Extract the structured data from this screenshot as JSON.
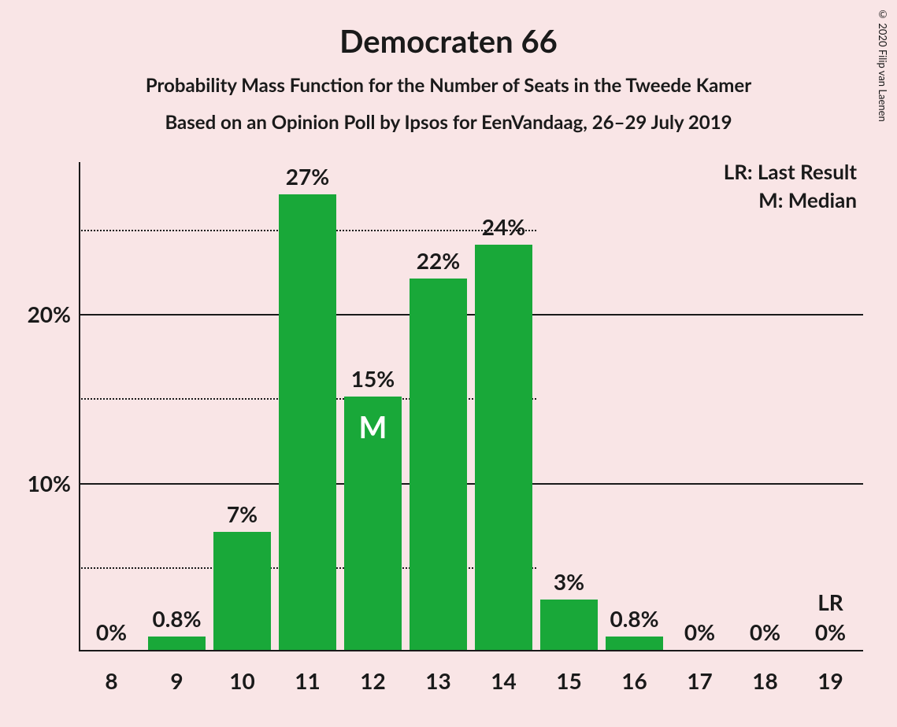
{
  "meta": {
    "copyright": "© 2020 Filip van Laenen"
  },
  "chart": {
    "type": "bar",
    "title": "Democraten 66",
    "subtitle1": "Probability Mass Function for the Number of Seats in the Tweede Kamer",
    "subtitle2": "Based on an Opinion Poll by Ipsos for EenVandaag, 26–29 July 2019",
    "background_color": "#f9e5e6",
    "bar_color": "#19a839",
    "text_color": "#1a1a1a",
    "grid_color": "#1a1a1a",
    "legend": {
      "lr": "LR: Last Result",
      "m": "M: Median"
    },
    "y_axis": {
      "ticks": [
        {
          "value": 10,
          "label": "10%"
        },
        {
          "value": 20,
          "label": "20%"
        }
      ],
      "minor_ticks": [
        5,
        15,
        25
      ],
      "max": 29
    },
    "categories": [
      "8",
      "9",
      "10",
      "11",
      "12",
      "13",
      "14",
      "15",
      "16",
      "17",
      "18",
      "19"
    ],
    "values": [
      0,
      0.8,
      7,
      27,
      15,
      22,
      24,
      3,
      0.8,
      0,
      0,
      0
    ],
    "value_labels": [
      "0%",
      "0.8%",
      "7%",
      "27%",
      "15%",
      "22%",
      "24%",
      "3%",
      "0.8%",
      "0%",
      "0%",
      "0%"
    ],
    "median_index": 4,
    "median_label": "M",
    "lr_index": 11,
    "lr_label": "LR",
    "bar_width_ratio": 0.88,
    "title_fontsize": 40,
    "subtitle_fontsize": 24,
    "axis_label_fontsize": 28
  }
}
